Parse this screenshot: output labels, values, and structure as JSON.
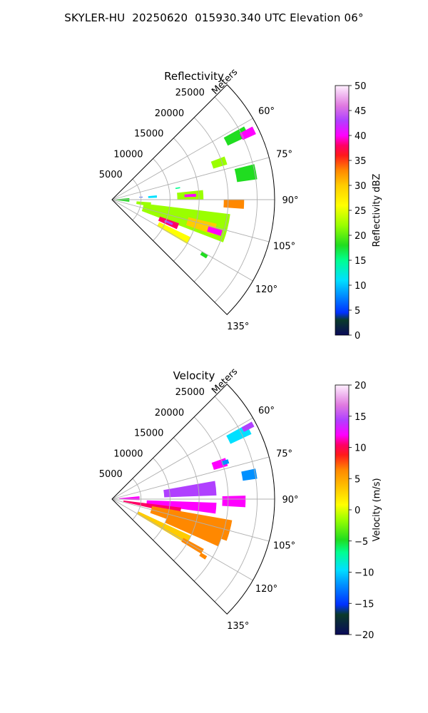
{
  "figure": {
    "title": "SKYLER-HU  20250620  015930.340 UTC Elevation 06°"
  },
  "chart_data": [
    {
      "type": "heatmap",
      "title": "Reflectivity",
      "projection": "polar-sector",
      "radial_label": "Meters",
      "radial_ticks": [
        5000,
        10000,
        15000,
        20000,
        25000
      ],
      "radial_tick_labels": [
        "5000",
        "10000",
        "15000",
        "20000",
        "25000"
      ],
      "rmax": 28000,
      "theta_range_deg": [
        45,
        135
      ],
      "theta_ticks_deg": [
        60,
        75,
        90,
        105,
        120,
        135
      ],
      "theta_tick_labels": [
        "60°",
        "75°",
        "90°",
        "105°",
        "120°",
        "135°"
      ],
      "grid": true,
      "colorbar": {
        "label": "Reflectivity dBZ",
        "range": [
          0,
          50
        ],
        "ticks": [
          0,
          5,
          10,
          15,
          20,
          25,
          30,
          35,
          40,
          45,
          50
        ],
        "tick_labels": [
          "0",
          "5",
          "10",
          "15",
          "20",
          "25",
          "30",
          "35",
          "40",
          "45",
          "50"
        ]
      },
      "cells": [
        {
          "theta": 63,
          "r": 24000,
          "dtheta": 4,
          "dr": 4000,
          "value": 20
        },
        {
          "theta": 64,
          "r": 26000,
          "dtheta": 3,
          "dr": 2500,
          "value": 40
        },
        {
          "theta": 71,
          "r": 19500,
          "dtheta": 4,
          "dr": 2500,
          "value": 22
        },
        {
          "theta": 79,
          "r": 23500,
          "dtheta": 6,
          "dr": 3500,
          "value": 20
        },
        {
          "theta": 80,
          "r": 11500,
          "dtheta": 1,
          "dr": 800,
          "value": 15
        },
        {
          "theta": 85,
          "r": 5000,
          "dtheta": 1,
          "dr": 600,
          "value": 5
        },
        {
          "theta": 86,
          "r": 7000,
          "dtheta": 3,
          "dr": 1500,
          "value": 12
        },
        {
          "theta": 87,
          "r": 13500,
          "dtheta": 6,
          "dr": 4500,
          "value": 22
        },
        {
          "theta": 87,
          "r": 13500,
          "dtheta": 2,
          "dr": 2000,
          "value": 40
        },
        {
          "theta": 92,
          "r": 21000,
          "dtheta": 4,
          "dr": 3500,
          "value": 35
        },
        {
          "theta": 91,
          "r": 1500,
          "dtheta": 12,
          "dr": 3000,
          "value": 18
        },
        {
          "theta": 97,
          "r": 5500,
          "dtheta": 6,
          "dr": 2500,
          "value": 24
        },
        {
          "theta": 104,
          "r": 13000,
          "dtheta": 14,
          "dr": 15000,
          "value": 22
        },
        {
          "theta": 106,
          "r": 16000,
          "dtheta": 6,
          "dr": 5000,
          "value": 32
        },
        {
          "theta": 107,
          "r": 18500,
          "dtheta": 3,
          "dr": 2500,
          "value": 42
        },
        {
          "theta": 112,
          "r": 10500,
          "dtheta": 5,
          "dr": 3500,
          "value": 38
        },
        {
          "theta": 112,
          "r": 10500,
          "dtheta": 2,
          "dr": 1500,
          "value": 44
        },
        {
          "theta": 118,
          "r": 12000,
          "dtheta": 5,
          "dr": 6000,
          "value": 27
        },
        {
          "theta": 121,
          "r": 18500,
          "dtheta": 2,
          "dr": 1200,
          "value": 18
        }
      ]
    },
    {
      "type": "heatmap",
      "title": "Velocity",
      "projection": "polar-sector",
      "radial_label": "Meters",
      "radial_ticks": [
        5000,
        10000,
        15000,
        20000,
        25000
      ],
      "radial_tick_labels": [
        "5000",
        "10000",
        "15000",
        "20000",
        "25000"
      ],
      "rmax": 28000,
      "theta_range_deg": [
        45,
        135
      ],
      "theta_ticks_deg": [
        60,
        75,
        90,
        105,
        120,
        135
      ],
      "theta_tick_labels": [
        "60°",
        "75°",
        "90°",
        "105°",
        "120°",
        "135°"
      ],
      "grid": true,
      "colorbar": {
        "label": "Velocity (m/s)",
        "range": [
          -20,
          20
        ],
        "ticks": [
          -20,
          -15,
          -10,
          -5,
          0,
          5,
          10,
          15,
          20
        ],
        "tick_labels": [
          "−20",
          "−15",
          "−10",
          "−5",
          "0",
          "5",
          "10",
          "15",
          "20"
        ]
      },
      "cells": [
        {
          "theta": 63,
          "r": 24500,
          "dtheta": 4,
          "dr": 4000,
          "value": -10
        },
        {
          "theta": 62,
          "r": 26500,
          "dtheta": 2,
          "dr": 2000,
          "value": 15
        },
        {
          "theta": 72,
          "r": 19500,
          "dtheta": 4,
          "dr": 2500,
          "value": 14
        },
        {
          "theta": 72,
          "r": 20500,
          "dtheta": 2,
          "dr": 1200,
          "value": -12
        },
        {
          "theta": 80,
          "r": 24000,
          "dtheta": 4,
          "dr": 2500,
          "value": -12
        },
        {
          "theta": 84,
          "r": 13500,
          "dtheta": 8,
          "dr": 9000,
          "value": 15
        },
        {
          "theta": 88,
          "r": 3000,
          "dtheta": 8,
          "dr": 3500,
          "value": 14
        },
        {
          "theta": 91,
          "r": 21000,
          "dtheta": 5,
          "dr": 4000,
          "value": 14
        },
        {
          "theta": 95,
          "r": 12000,
          "dtheta": 6,
          "dr": 12000,
          "value": 12
        },
        {
          "theta": 100,
          "r": 7000,
          "dtheta": 6,
          "dr": 10000,
          "value": 11
        },
        {
          "theta": 105,
          "r": 14000,
          "dtheta": 10,
          "dr": 14000,
          "value": 8
        },
        {
          "theta": 110,
          "r": 15000,
          "dtheta": 8,
          "dr": 10000,
          "value": 6
        },
        {
          "theta": 118,
          "r": 10000,
          "dtheta": 6,
          "dr": 10000,
          "value": 4
        },
        {
          "theta": 120,
          "r": 16000,
          "dtheta": 3,
          "dr": 4000,
          "value": 7
        },
        {
          "theta": 122,
          "r": 18500,
          "dtheta": 2,
          "dr": 1200,
          "value": 7
        }
      ]
    }
  ]
}
